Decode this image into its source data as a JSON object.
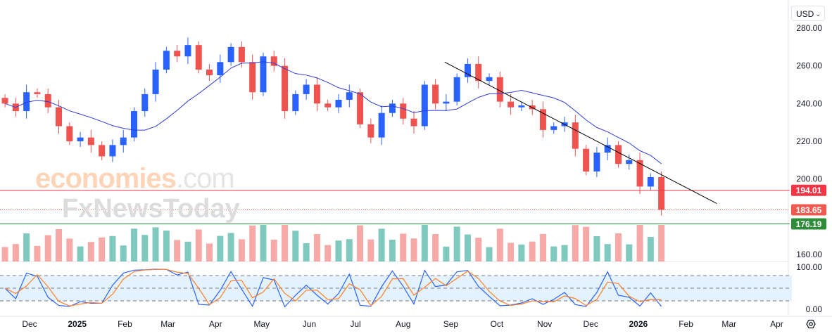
{
  "currency_selector": "USD",
  "watermark": {
    "line1_brand": "economies",
    "line1_suffix": ".com",
    "line2": "FxNewsToday"
  },
  "chart_data": {
    "type": "candlestick",
    "price_axis": {
      "ticks": [
        "280.00",
        "260.00",
        "240.00",
        "220.00",
        "200.00",
        "160.00"
      ],
      "range": [
        160,
        280
      ]
    },
    "oscillator_axis": {
      "ticks": [
        "100.00",
        "0.00"
      ],
      "range": [
        0,
        100
      ],
      "bands": [
        20,
        50,
        80
      ]
    },
    "time_axis": {
      "ticks": [
        "Dec",
        "2025",
        "Feb",
        "Mar",
        "Apr",
        "May",
        "Jun",
        "Jul",
        "Aug",
        "Sep",
        "Oct",
        "Nov",
        "Dec",
        "2026",
        "Feb",
        "Mar",
        "Apr"
      ],
      "bold": [
        "2025",
        "2026"
      ]
    },
    "weekly_closes": [
      [
        "2024-11-15",
        240
      ],
      [
        "2024-11-22",
        236
      ],
      [
        "2024-11-29",
        246
      ],
      [
        "2024-12-06",
        245
      ],
      [
        "2024-12-13",
        238
      ],
      [
        "2024-12-20",
        228
      ],
      [
        "2024-12-27",
        220
      ],
      [
        "2025-01-03",
        222
      ],
      [
        "2025-01-10",
        218
      ],
      [
        "2025-01-17",
        212
      ],
      [
        "2025-01-24",
        218
      ],
      [
        "2025-01-31",
        222
      ],
      [
        "2025-02-07",
        236
      ],
      [
        "2025-02-14",
        245
      ],
      [
        "2025-02-21",
        258
      ],
      [
        "2025-02-28",
        268
      ],
      [
        "2025-03-07",
        265
      ],
      [
        "2025-03-14",
        271
      ],
      [
        "2025-03-21",
        258
      ],
      [
        "2025-03-28",
        255
      ],
      [
        "2025-04-04",
        262
      ],
      [
        "2025-04-11",
        270
      ],
      [
        "2025-04-18",
        262
      ],
      [
        "2025-04-25",
        246
      ],
      [
        "2025-05-02",
        265
      ],
      [
        "2025-05-09",
        260
      ],
      [
        "2025-05-16",
        236
      ],
      [
        "2025-05-23",
        245
      ],
      [
        "2025-05-30",
        250
      ],
      [
        "2025-06-06",
        240
      ],
      [
        "2025-06-13",
        238
      ],
      [
        "2025-06-20",
        242
      ],
      [
        "2025-06-27",
        246
      ],
      [
        "2025-07-04",
        229
      ],
      [
        "2025-07-11",
        222
      ],
      [
        "2025-07-18",
        235
      ],
      [
        "2025-07-25",
        240
      ],
      [
        "2025-08-01",
        232
      ],
      [
        "2025-08-08",
        228
      ],
      [
        "2025-08-15",
        250
      ],
      [
        "2025-08-22",
        240
      ],
      [
        "2025-08-29",
        241
      ],
      [
        "2025-09-05",
        254
      ],
      [
        "2025-09-12",
        261
      ],
      [
        "2025-09-19",
        252
      ],
      [
        "2025-09-26",
        254
      ],
      [
        "2025-10-03",
        241
      ],
      [
        "2025-10-10",
        238
      ],
      [
        "2025-10-17",
        239
      ],
      [
        "2025-10-24",
        237
      ],
      [
        "2025-10-31",
        226
      ],
      [
        "2025-11-07",
        228
      ],
      [
        "2025-11-14",
        230
      ],
      [
        "2025-11-21",
        216
      ],
      [
        "2025-11-28",
        204
      ],
      [
        "2025-12-05",
        214
      ],
      [
        "2025-12-12",
        218
      ],
      [
        "2025-12-19",
        208
      ],
      [
        "2025-12-26",
        210
      ],
      [
        "2026-01-02",
        196
      ],
      [
        "2026-01-09",
        201
      ],
      [
        "2026-01-16",
        183.65
      ]
    ],
    "levels": [
      {
        "label": "194.01",
        "value": 194.01,
        "color": "#f23645",
        "style": "solid"
      },
      {
        "label": "183.65",
        "value": 183.65,
        "color": "#f05a50",
        "style": "dotted"
      },
      {
        "label": "176.19",
        "value": 176.19,
        "color": "#2e8b3a",
        "style": "solid"
      }
    ],
    "trendline": {
      "from": [
        "2025-08-28",
        262
      ],
      "to": [
        "2026-02-21",
        187
      ],
      "color": "#000000"
    },
    "colors": {
      "up": "#2962ff",
      "down": "#ef5350",
      "ma": "#2e3bd6",
      "stoch_k": "#2962ff",
      "stoch_d": "#ff7f27",
      "vol_up": "#7fc9be",
      "vol_down": "#f7a9a7",
      "band_fill": "#e3f2fd"
    }
  }
}
